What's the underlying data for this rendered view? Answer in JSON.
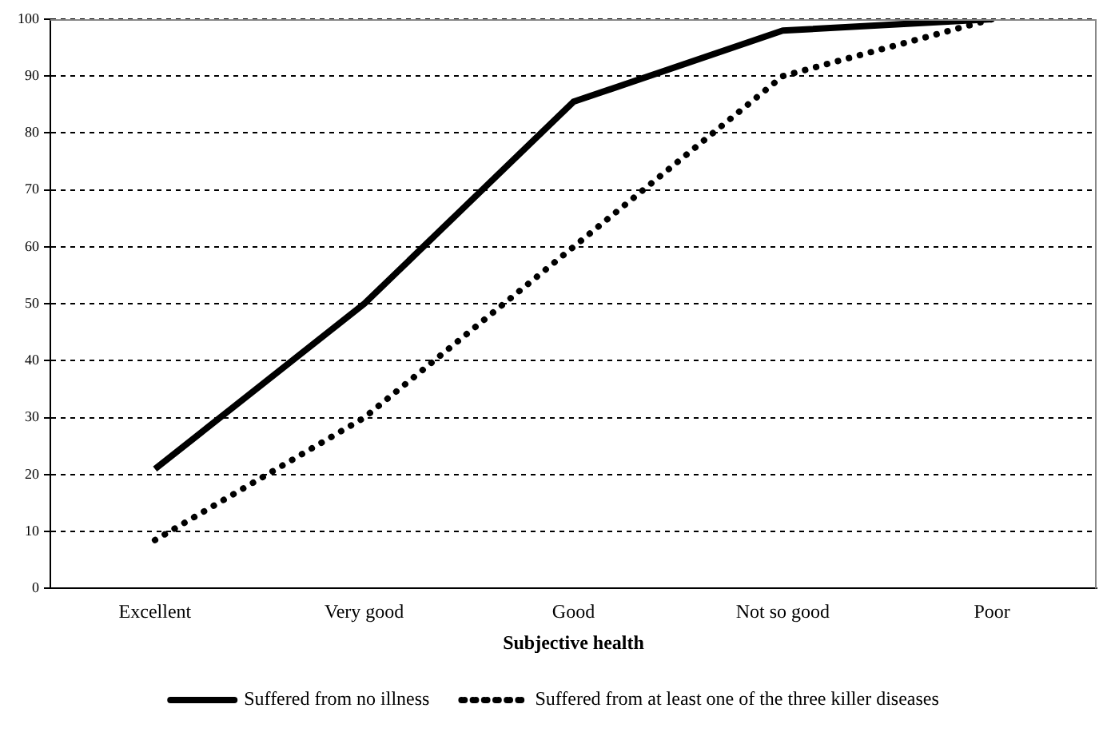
{
  "chart_data": {
    "type": "line",
    "xlabel": "Subjective health",
    "categories": [
      "Excellent",
      "Very good",
      "Good",
      "Not so good",
      "Poor"
    ],
    "series": [
      {
        "name": "Suffered from no illness",
        "color": "#000000",
        "line_style": "solid",
        "values": [
          21,
          50,
          85.5,
          98,
          100
        ]
      },
      {
        "name": "Suffered from at least one of the three killer diseases",
        "color": "#000000",
        "line_style": "dotted",
        "values": [
          8.5,
          30,
          60,
          90,
          100
        ]
      }
    ],
    "ylim": [
      0,
      100
    ],
    "yticks": [
      0,
      10,
      20,
      30,
      40,
      50,
      60,
      70,
      80,
      90,
      100
    ],
    "grid": "y",
    "legend": "bottom",
    "marker": "none"
  }
}
